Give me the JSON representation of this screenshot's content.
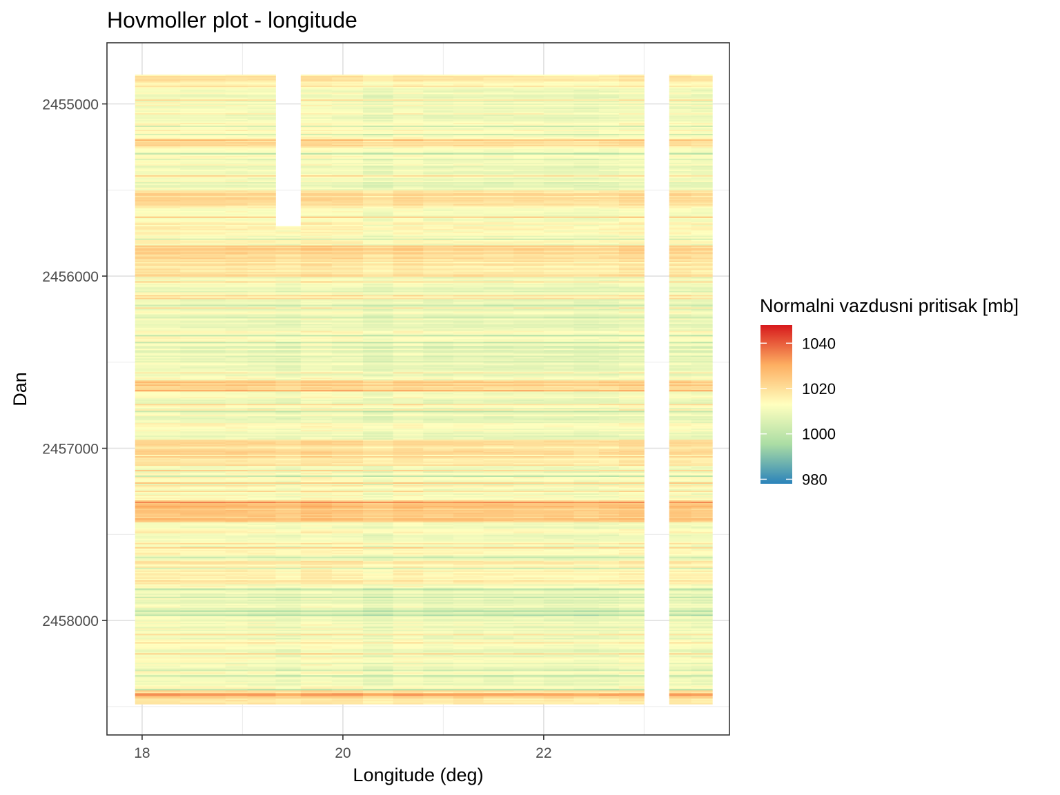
{
  "chart_data": {
    "type": "heatmap",
    "title": "Hovmoller plot - longitude",
    "xlabel": "Longitude (deg)",
    "ylabel": "Dan",
    "xlim": [
      17.65,
      23.85
    ],
    "ylim": [
      2454645,
      2458665
    ],
    "y_reversed": true,
    "x_ticks": [
      18,
      20,
      22
    ],
    "y_ticks": [
      2455000,
      2456000,
      2457000,
      2458000
    ],
    "grid": true,
    "legend": {
      "title": "Normalni vazdusni pritisak [mb]",
      "placement": "right",
      "ticks": [
        1040,
        1020,
        1000,
        980
      ],
      "range": [
        978,
        1048
      ],
      "palette": [
        "#2b83ba",
        "#abdda4",
        "#ffffbf",
        "#fdae61",
        "#d7191c"
      ]
    },
    "columns": [
      {
        "lon": 18.1,
        "day_start": 2454830,
        "day_end": 2458480
      },
      {
        "lon": 18.5,
        "day_start": 2454830,
        "day_end": 2458480
      },
      {
        "lon": 18.9,
        "day_start": 2454830,
        "day_end": 2458480
      },
      {
        "lon": 19.2,
        "day_start": 2454830,
        "day_end": 2458480
      },
      {
        "lon": 19.45,
        "day_start": 2455705,
        "day_end": 2458480
      },
      {
        "lon": 19.7,
        "day_start": 2454830,
        "day_end": 2458480
      },
      {
        "lon": 20.0,
        "day_start": 2454830,
        "day_end": 2458480
      },
      {
        "lon": 20.3,
        "day_start": 2454830,
        "day_end": 2458480
      },
      {
        "lon": 20.6,
        "day_start": 2454830,
        "day_end": 2458480
      },
      {
        "lon": 20.9,
        "day_start": 2454830,
        "day_end": 2458480
      },
      {
        "lon": 21.2,
        "day_start": 2454830,
        "day_end": 2458480
      },
      {
        "lon": 21.5,
        "day_start": 2454830,
        "day_end": 2458480
      },
      {
        "lon": 21.8,
        "day_start": 2454830,
        "day_end": 2458480
      },
      {
        "lon": 22.1,
        "day_start": 2454830,
        "day_end": 2458480
      },
      {
        "lon": 22.4,
        "day_start": 2454830,
        "day_end": 2458480
      },
      {
        "lon": 22.6,
        "day_start": 2454830,
        "day_end": 2458480
      },
      {
        "lon": 22.85,
        "day_start": 2454830,
        "day_end": 2458480
      },
      {
        "lon": 23.35,
        "day_start": 2454830,
        "day_end": 2458480
      },
      {
        "lon": 23.55,
        "day_start": 2454830,
        "day_end": 2458480
      }
    ],
    "column_bounds": [
      [
        17.93,
        18.38
      ],
      [
        18.38,
        18.83
      ],
      [
        18.83,
        19.05
      ],
      [
        19.05,
        19.33
      ],
      [
        19.33,
        19.58
      ],
      [
        19.58,
        19.89
      ],
      [
        19.89,
        20.2
      ],
      [
        20.2,
        20.5
      ],
      [
        20.5,
        20.8
      ],
      [
        20.8,
        21.1
      ],
      [
        21.1,
        21.4
      ],
      [
        21.4,
        21.7
      ],
      [
        21.7,
        22.0
      ],
      [
        22.0,
        22.3
      ],
      [
        22.3,
        22.55
      ],
      [
        22.55,
        22.75
      ],
      [
        22.75,
        23.0
      ],
      [
        23.25,
        23.47
      ],
      [
        23.47,
        23.68
      ]
    ],
    "pressure_bands": [
      {
        "day_start": 2454830,
        "day_end": 2454900,
        "value": 1016
      },
      {
        "day_start": 2454900,
        "day_end": 2455000,
        "value": 1010
      },
      {
        "day_start": 2455000,
        "day_end": 2455200,
        "value": 1012
      },
      {
        "day_start": 2455200,
        "day_end": 2455250,
        "value": 1018
      },
      {
        "day_start": 2455250,
        "day_end": 2455500,
        "value": 1010
      },
      {
        "day_start": 2455500,
        "day_end": 2455600,
        "value": 1019
      },
      {
        "day_start": 2455600,
        "day_end": 2455820,
        "value": 1012
      },
      {
        "day_start": 2455820,
        "day_end": 2455900,
        "value": 1022
      },
      {
        "day_start": 2455900,
        "day_end": 2456000,
        "value": 1018
      },
      {
        "day_start": 2456000,
        "day_end": 2456300,
        "value": 1010
      },
      {
        "day_start": 2456300,
        "day_end": 2456400,
        "value": 1012
      },
      {
        "day_start": 2456400,
        "day_end": 2456600,
        "value": 1008
      },
      {
        "day_start": 2456600,
        "day_end": 2456670,
        "value": 1023
      },
      {
        "day_start": 2456670,
        "day_end": 2456950,
        "value": 1011
      },
      {
        "day_start": 2456950,
        "day_end": 2457100,
        "value": 1019
      },
      {
        "day_start": 2457100,
        "day_end": 2457300,
        "value": 1011
      },
      {
        "day_start": 2457300,
        "day_end": 2457420,
        "value": 1025
      },
      {
        "day_start": 2457420,
        "day_end": 2457650,
        "value": 1012
      },
      {
        "day_start": 2457650,
        "day_end": 2457800,
        "value": 1016
      },
      {
        "day_start": 2457800,
        "day_end": 2458000,
        "value": 1009
      },
      {
        "day_start": 2458000,
        "day_end": 2458400,
        "value": 1011
      },
      {
        "day_start": 2458400,
        "day_end": 2458480,
        "value": 1020
      }
    ]
  }
}
